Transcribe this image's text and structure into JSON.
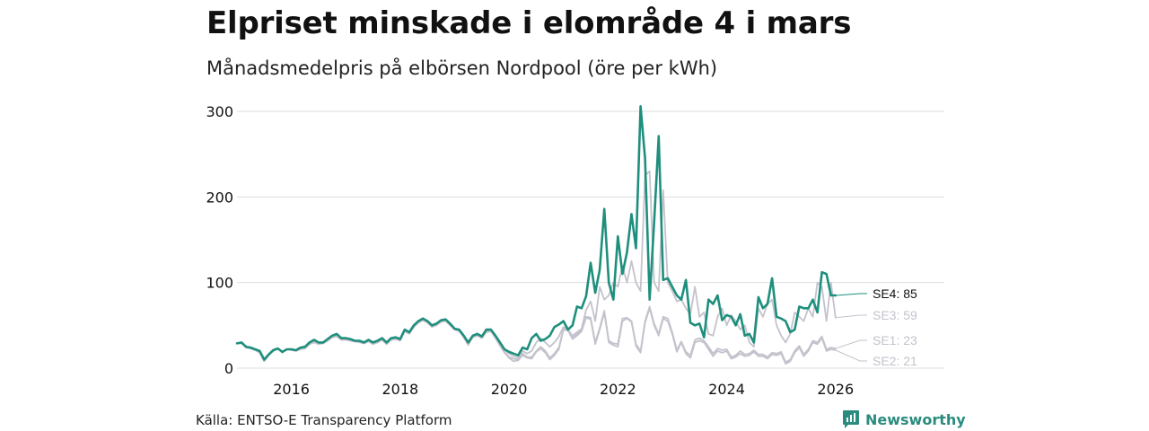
{
  "title": "Elpriset minskade i elområde 4 i mars",
  "subtitle": "Månadsmedelpris på elbörsen Nordpool (öre per kWh)",
  "source": "Källa: ENTSO-E Transparency Platform",
  "brand": "Newsworthy",
  "colors": {
    "se4": "#1f8f7d",
    "other": "#c4c2cc",
    "grid": "#dddddd",
    "brand": "#2a8c7e",
    "label_dark": "#111111"
  },
  "chart_data": {
    "type": "line",
    "title": "Elpriset minskade i elområde 4 i mars",
    "subtitle": "Månadsmedelpris på elbörsen Nordpool (öre per kWh)",
    "xlabel": "",
    "ylabel": "",
    "x_start": "2015-01",
    "x_tick_labels": [
      "2016",
      "2018",
      "2020",
      "2022",
      "2024",
      "2026"
    ],
    "x_tick_values": [
      2016,
      2018,
      2020,
      2022,
      2024,
      2026
    ],
    "xlim": [
      2015.0,
      2028.0
    ],
    "y_tick_labels": [
      "0",
      "100",
      "200",
      "300"
    ],
    "y_tick_values": [
      0,
      100,
      200,
      300
    ],
    "ylim": [
      0,
      300
    ],
    "grid": true,
    "series": [
      {
        "name": "SE2",
        "end_label": "SE2: 21",
        "values": [
          29,
          29,
          24,
          23,
          21,
          18,
          8,
          15,
          20,
          23,
          18,
          22,
          21,
          20,
          22,
          23,
          28,
          30,
          28,
          29,
          32,
          36,
          37,
          33,
          33,
          32,
          31,
          30,
          29,
          31,
          28,
          30,
          33,
          28,
          33,
          34,
          32,
          43,
          40,
          48,
          53,
          56,
          53,
          48,
          50,
          54,
          55,
          50,
          45,
          43,
          36,
          27,
          36,
          38,
          35,
          42,
          43,
          35,
          26,
          18,
          12,
          8,
          9,
          15,
          12,
          11,
          19,
          23,
          18,
          10,
          15,
          22,
          45,
          44,
          34,
          38,
          43,
          59,
          57,
          28,
          45,
          65,
          30,
          27,
          25,
          55,
          58,
          54,
          26,
          18,
          53,
          70,
          50,
          38,
          58,
          55,
          40,
          19,
          30,
          17,
          12,
          30,
          32,
          30,
          22,
          14,
          20,
          18,
          20,
          11,
          13,
          17,
          14,
          15,
          19,
          14,
          14,
          11,
          16,
          15,
          17,
          5,
          8,
          18,
          24,
          14,
          20,
          30,
          28,
          35,
          20,
          22,
          21
        ]
      },
      {
        "name": "SE1",
        "end_label": "SE1: 23",
        "values": [
          29,
          29,
          25,
          24,
          22,
          20,
          10,
          16,
          21,
          23,
          19,
          22,
          22,
          21,
          23,
          24,
          28,
          31,
          29,
          29,
          32,
          36,
          38,
          33,
          34,
          33,
          31,
          31,
          29,
          31,
          29,
          30,
          33,
          28,
          33,
          34,
          33,
          44,
          41,
          48,
          53,
          57,
          54,
          48,
          51,
          55,
          56,
          51,
          45,
          44,
          36,
          28,
          37,
          39,
          36,
          43,
          44,
          36,
          27,
          19,
          13,
          11,
          10,
          17,
          13,
          13,
          20,
          25,
          20,
          12,
          17,
          24,
          46,
          46,
          36,
          40,
          44,
          60,
          59,
          30,
          47,
          67,
          32,
          29,
          28,
          58,
          59,
          55,
          28,
          20,
          55,
          72,
          52,
          40,
          60,
          58,
          42,
          21,
          31,
          19,
          15,
          33,
          35,
          32,
          25,
          17,
          23,
          21,
          22,
          13,
          15,
          20,
          16,
          17,
          21,
          16,
          16,
          13,
          18,
          17,
          19,
          7,
          10,
          20,
          26,
          16,
          22,
          32,
          30,
          37,
          22,
          24,
          23
        ]
      },
      {
        "name": "SE3",
        "end_label": "SE3: 59",
        "values": [
          29,
          30,
          25,
          24,
          22,
          20,
          10,
          16,
          21,
          23,
          19,
          22,
          22,
          21,
          24,
          25,
          30,
          33,
          30,
          30,
          34,
          38,
          40,
          35,
          35,
          34,
          32,
          32,
          30,
          33,
          30,
          32,
          35,
          30,
          35,
          36,
          34,
          45,
          42,
          50,
          55,
          58,
          55,
          50,
          52,
          56,
          57,
          52,
          46,
          45,
          38,
          30,
          38,
          40,
          37,
          44,
          45,
          38,
          29,
          22,
          17,
          14,
          12,
          20,
          17,
          20,
          30,
          35,
          30,
          25,
          30,
          37,
          48,
          45,
          38,
          42,
          46,
          68,
          78,
          55,
          95,
          80,
          85,
          100,
          95,
          120,
          100,
          125,
          100,
          90,
          225,
          230,
          100,
          90,
          208,
          100,
          90,
          78,
          80,
          70,
          63,
          95,
          60,
          65,
          40,
          38,
          60,
          70,
          50,
          62,
          55,
          45,
          50,
          30,
          25,
          70,
          60,
          75,
          80,
          50,
          38,
          30,
          40,
          65,
          60,
          55,
          70,
          60,
          100,
          95,
          55,
          100,
          59
        ]
      },
      {
        "name": "SE4",
        "end_label": "SE4: 85",
        "values": [
          29,
          30,
          25,
          24,
          22,
          20,
          10,
          16,
          21,
          23,
          19,
          22,
          22,
          21,
          24,
          25,
          30,
          33,
          30,
          30,
          34,
          38,
          40,
          35,
          35,
          34,
          32,
          32,
          30,
          33,
          30,
          32,
          35,
          30,
          35,
          36,
          34,
          45,
          42,
          50,
          55,
          58,
          55,
          50,
          52,
          56,
          57,
          52,
          46,
          45,
          38,
          30,
          38,
          40,
          37,
          45,
          45,
          38,
          30,
          22,
          19,
          17,
          15,
          24,
          22,
          35,
          40,
          32,
          34,
          38,
          48,
          51,
          55,
          45,
          50,
          72,
          70,
          84,
          123,
          88,
          115,
          186,
          100,
          80,
          154,
          110,
          135,
          180,
          140,
          306,
          245,
          80,
          170,
          271,
          103,
          105,
          95,
          85,
          80,
          103,
          53,
          50,
          52,
          36,
          80,
          75,
          85,
          56,
          62,
          60,
          50,
          63,
          38,
          40,
          30,
          83,
          70,
          75,
          105,
          60,
          58,
          55,
          42,
          45,
          72,
          70,
          70,
          80,
          65,
          112,
          110,
          85,
          85
        ]
      }
    ],
    "end_labels": [
      "SE4: 85",
      "SE3: 59",
      "SE1: 23",
      "SE2: 21"
    ]
  }
}
